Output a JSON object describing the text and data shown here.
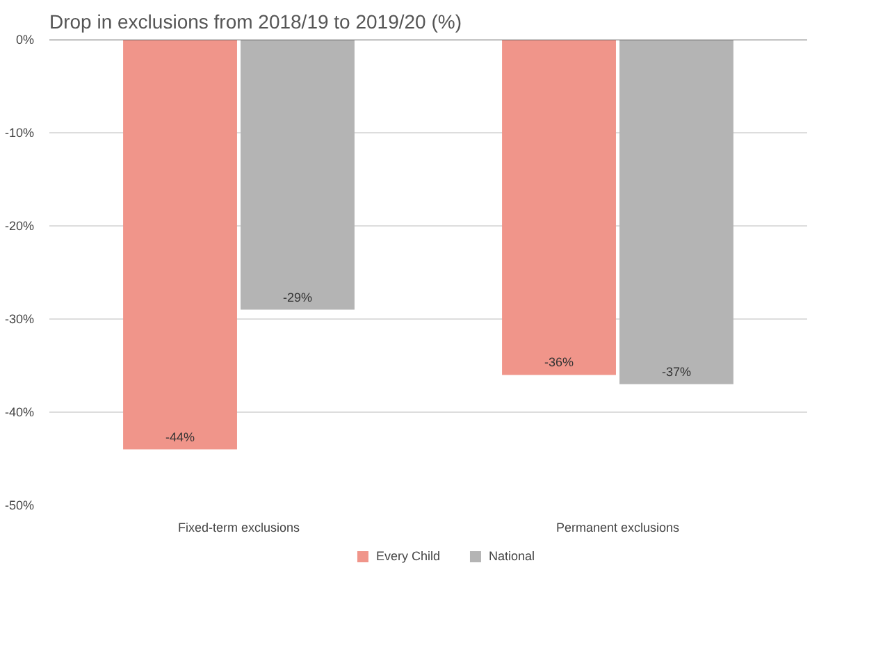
{
  "chart_data": {
    "type": "bar",
    "title": "Drop in exclusions from 2018/19 to 2019/20 (%)",
    "categories": [
      "Fixed-term exclusions",
      "Permanent exclusions"
    ],
    "series": [
      {
        "name": "Every Child",
        "color": "#f0958a",
        "values": [
          -44,
          -36
        ],
        "value_labels": [
          "-44%",
          "-36%"
        ]
      },
      {
        "name": "National",
        "color": "#b4b4b4",
        "values": [
          -29,
          -37
        ],
        "value_labels": [
          "-29%",
          "-37%"
        ]
      }
    ],
    "ylim": [
      -50,
      0
    ],
    "yticks": [
      {
        "value": -50,
        "label": "-50%"
      },
      {
        "value": -40,
        "label": "-40%"
      },
      {
        "value": -30,
        "label": "-30%"
      },
      {
        "value": -20,
        "label": "-20%"
      },
      {
        "value": -10,
        "label": "-10%"
      },
      {
        "value": 0,
        "label": "0%"
      }
    ],
    "grid": "y",
    "legend": "bottom"
  }
}
